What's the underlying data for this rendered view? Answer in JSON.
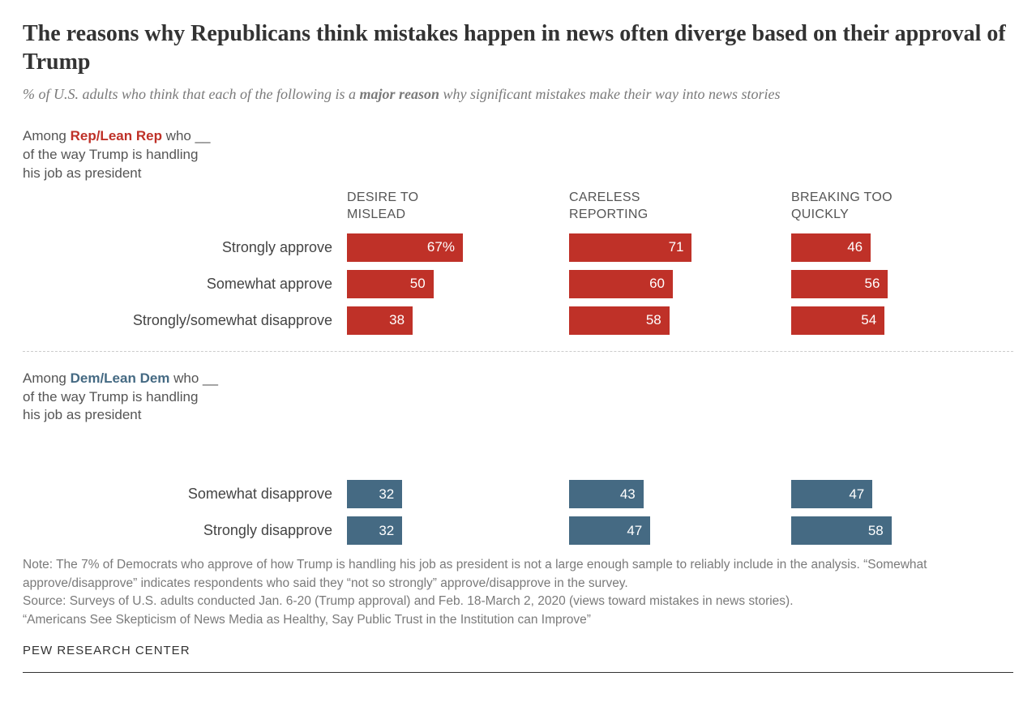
{
  "title": "The reasons why Republicans think mistakes happen in news often diverge based on their approval of Trump",
  "subtitle_pre": "% of U.S. adults who think that each of the following is a ",
  "subtitle_bold": "major reason",
  "subtitle_post": " why significant mistakes make their way into news stories",
  "columns": [
    {
      "label_line1": "DESIRE TO",
      "label_line2": "MISLEAD"
    },
    {
      "label_line1": "CARELESS",
      "label_line2": "REPORTING"
    },
    {
      "label_line1": "BREAKING TOO",
      "label_line2": "QUICKLY"
    }
  ],
  "groups": [
    {
      "header_pre": "Among ",
      "header_party": "Rep/Lean Rep",
      "header_post": " who __",
      "header_line2": "of the way Trump is handling",
      "header_line3": "his job as president",
      "party_color": "#bf3128",
      "bar_color": "#bf3128",
      "max": 100,
      "rows": [
        {
          "label": "Strongly approve",
          "values": [
            67,
            71,
            46
          ],
          "suffix_first": "%"
        },
        {
          "label": "Somewhat approve",
          "values": [
            50,
            60,
            56
          ],
          "suffix_first": ""
        },
        {
          "label": "Strongly/somewhat disapprove",
          "values": [
            38,
            58,
            54
          ],
          "suffix_first": ""
        }
      ]
    },
    {
      "header_pre": "Among ",
      "header_party": "Dem/Lean Dem",
      "header_post": " who __",
      "header_line2": "of the way Trump is handling",
      "header_line3": "his job as president",
      "party_color": "#456a83",
      "bar_color": "#456a83",
      "max": 100,
      "rows": [
        {
          "label": "Somewhat disapprove",
          "values": [
            32,
            43,
            47
          ],
          "suffix_first": ""
        },
        {
          "label": "Strongly disapprove",
          "values": [
            32,
            47,
            58
          ],
          "suffix_first": ""
        }
      ]
    }
  ],
  "note1": "Note: The 7% of Democrats who approve of how Trump is handling his job as president is not a large enough sample to reliably include in the analysis. “Somewhat approve/disapprove” indicates respondents who said they “not so strongly” approve/disapprove in the survey.",
  "note2": "Source: Surveys of U.S. adults conducted Jan. 6-20 (Trump approval) and Feb. 18-March 2, 2020 (views toward mistakes in news stories).",
  "note3": "“Americans See Skepticism of News Media as Healthy, Say Public Trust in the Institution can Improve”",
  "footer": "PEW RESEARCH CENTER",
  "layout": {
    "bar_max_pct_width": 84
  }
}
